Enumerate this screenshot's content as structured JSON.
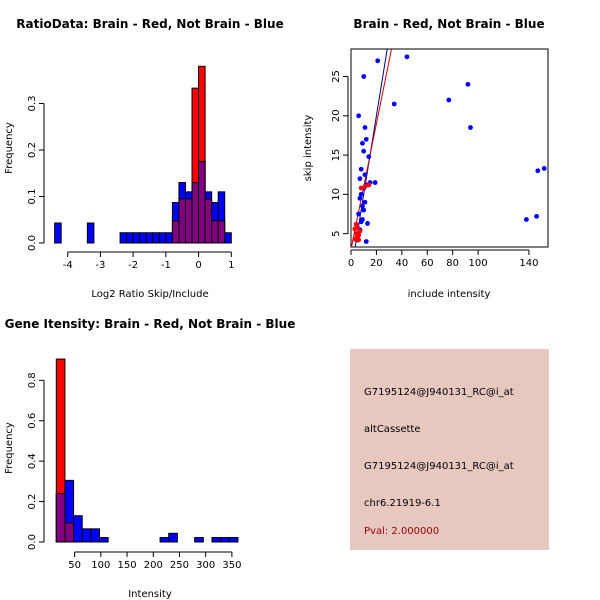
{
  "colors": {
    "red": "#ff0000",
    "blue": "#0000ff",
    "overlap": "#800080",
    "diag": "#00008b",
    "fit": "#cc0000",
    "panel_bg": "#e6c8c0",
    "pval": "#990000"
  },
  "chart_data": [
    {
      "type": "bar",
      "title": "RatioData: Brain - Red, Not Brain - Blue",
      "xlabel": "Log2 Ratio Skip/Include",
      "ylabel": "Frequency",
      "xlim": [
        -4.45,
        1.45
      ],
      "ylim": [
        0,
        0.4
      ],
      "xticks": [
        -4,
        -3,
        -2,
        -1,
        0,
        1
      ],
      "xtick_labels": [
        "-4",
        "-3",
        "-2",
        "-1",
        "0",
        "1"
      ],
      "yticks": [
        0,
        0.1,
        0.2,
        0.3
      ],
      "ytick_labels": [
        "0.0",
        "0.1",
        "0.2",
        "0.3"
      ],
      "bin_width": 0.2,
      "series": [
        {
          "name": "Not Brain",
          "color": "blue",
          "bins": [
            [
              -4.4,
              0.043
            ],
            [
              -3.4,
              0.043
            ],
            [
              -2.4,
              0.022
            ],
            [
              -2.2,
              0.022
            ],
            [
              -2.0,
              0.022
            ],
            [
              -1.8,
              0.022
            ],
            [
              -1.6,
              0.022
            ],
            [
              -1.4,
              0.022
            ],
            [
              -1.2,
              0.022
            ],
            [
              -1.0,
              0.022
            ],
            [
              -0.8,
              0.087
            ],
            [
              -0.6,
              0.13
            ],
            [
              -0.4,
              0.11
            ],
            [
              -0.2,
              0.13
            ],
            [
              0.0,
              0.175
            ],
            [
              0.2,
              0.11
            ],
            [
              0.4,
              0.087
            ],
            [
              0.6,
              0.11
            ],
            [
              0.8,
              0.022
            ]
          ]
        },
        {
          "name": "Brain",
          "color": "red",
          "bins": [
            [
              -0.8,
              0.048
            ],
            [
              -0.6,
              0.095
            ],
            [
              -0.4,
              0.095
            ],
            [
              -0.2,
              0.333
            ],
            [
              0.0,
              0.38
            ],
            [
              0.2,
              0.095
            ],
            [
              0.4,
              0.048
            ],
            [
              0.6,
              0.048
            ]
          ]
        }
      ]
    },
    {
      "type": "scatter",
      "title": "Brain - Red, Not Brain - Blue",
      "xlabel": "include intensity",
      "ylabel": "skip intensity",
      "xlim": [
        0,
        155
      ],
      "ylim": [
        3.3,
        28.5
      ],
      "xticks": [
        0,
        20,
        40,
        60,
        80,
        100,
        140
      ],
      "xtick_labels": [
        "0",
        "20",
        "40",
        "60",
        "80",
        "100",
        "140"
      ],
      "yticks": [
        5,
        10,
        15,
        20,
        25
      ],
      "ytick_labels": [
        "5",
        "10",
        "15",
        "20",
        "25"
      ],
      "series": [
        {
          "name": "Not Brain",
          "color": "blue",
          "points": [
            [
              5,
              4.2
            ],
            [
              7,
              5.5
            ],
            [
              8,
              6.5
            ],
            [
              6,
              7.5
            ],
            [
              9,
              8.5
            ],
            [
              7,
              9.5
            ],
            [
              10,
              10.8
            ],
            [
              12,
              11.2
            ],
            [
              11,
              12.5
            ],
            [
              8,
              13.2
            ],
            [
              14,
              14.8
            ],
            [
              10,
              15.5
            ],
            [
              9,
              16.5
            ],
            [
              12,
              17
            ],
            [
              11,
              18.5
            ],
            [
              6,
              20
            ],
            [
              10,
              25
            ],
            [
              21,
              27
            ],
            [
              44,
              27.5
            ],
            [
              34,
              21.5
            ],
            [
              77,
              22
            ],
            [
              92,
              24
            ],
            [
              94,
              18.5
            ],
            [
              138,
              6.8
            ],
            [
              146,
              7.2
            ],
            [
              147,
              13
            ],
            [
              152,
              13.3
            ],
            [
              12,
              4
            ],
            [
              9,
              6.8
            ],
            [
              11,
              9
            ],
            [
              7,
              12
            ],
            [
              15,
              11.5
            ],
            [
              19,
              11.5
            ],
            [
              13,
              6.3
            ],
            [
              8,
              10
            ],
            [
              10,
              8
            ]
          ]
        },
        {
          "name": "Brain",
          "color": "red",
          "points": [
            [
              3,
              4.3
            ],
            [
              4,
              5
            ],
            [
              5,
              5.8
            ],
            [
              6,
              4.8
            ],
            [
              4,
              6.2
            ],
            [
              5,
              4.5
            ],
            [
              7,
              5.3
            ],
            [
              8,
              10.8
            ],
            [
              11,
              11
            ],
            [
              14,
              11.2
            ],
            [
              3,
              5.6
            ],
            [
              6,
              4.2
            ]
          ]
        }
      ],
      "lines": [
        {
          "name": "identity",
          "color": "diag",
          "from": [
            0,
            0
          ],
          "to": [
            155,
            155
          ]
        },
        {
          "name": "brain-fit",
          "color": "fit",
          "from": [
            0,
            3.0
          ],
          "to": [
            32,
            28.6
          ]
        }
      ]
    },
    {
      "type": "bar",
      "title": "Gene Itensity: Brain - Red, Not Brain - Blue",
      "xlabel": "Intensity",
      "ylabel": "Frequency",
      "xlim": [
        3,
        375
      ],
      "ylim": [
        0,
        0.95
      ],
      "xticks": [
        50,
        100,
        150,
        200,
        250,
        300,
        350
      ],
      "xtick_labels": [
        "50",
        "100",
        "150",
        "200",
        "250",
        "300",
        "350"
      ],
      "yticks": [
        0,
        0.2,
        0.4,
        0.6,
        0.8
      ],
      "ytick_labels": [
        "0.0",
        "0.2",
        "0.4",
        "0.6",
        "0.8"
      ],
      "bin_width": 16.5,
      "series": [
        {
          "name": "Not Brain",
          "color": "blue",
          "bins": [
            [
              15,
              0.24
            ],
            [
              31.5,
              0.305
            ],
            [
              48,
              0.13
            ],
            [
              64.5,
              0.065
            ],
            [
              81,
              0.065
            ],
            [
              97.5,
              0.022
            ],
            [
              213,
              0.022
            ],
            [
              229.5,
              0.043
            ],
            [
              279,
              0.022
            ],
            [
              312,
              0.022
            ],
            [
              328.5,
              0.022
            ],
            [
              345,
              0.022
            ]
          ]
        },
        {
          "name": "Brain",
          "color": "red",
          "bins": [
            [
              15,
              0.905
            ],
            [
              31.5,
              0.095
            ]
          ]
        }
      ]
    }
  ],
  "info_panel": {
    "line1": "G7195124@J940131_RC@i_at",
    "line2": "altCassette",
    "line3": "G7195124@J940131_RC@i_at",
    "line4": "chr6.21919-6.1",
    "pval": "Pval: 2.000000"
  }
}
